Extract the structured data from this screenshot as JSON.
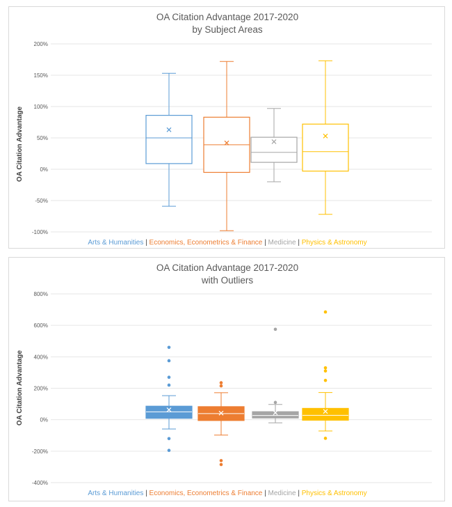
{
  "chart_data": [
    {
      "type": "box",
      "title": "OA Citation Advantage 2017-2020",
      "subtitle": "by Subject Areas",
      "ylabel": "OA Citation Advantage",
      "xlabel": "",
      "ylim": [
        -100,
        200
      ],
      "yticks": [
        "-100%",
        "-50%",
        "0%",
        "50%",
        "100%",
        "150%",
        "200%"
      ],
      "ytick_values": [
        -100,
        -50,
        0,
        50,
        100,
        150,
        200
      ],
      "grid": true,
      "filled": false,
      "legend_position": "bottom",
      "series": [
        {
          "name": "Arts & Humanities",
          "color": "#5b9bd5",
          "min": -59,
          "q1": 9,
          "median": 50,
          "q3": 86,
          "max": 153,
          "mean": 63,
          "outliers": []
        },
        {
          "name": "Economics, Econometrics & Finance",
          "color": "#ed7d31",
          "min": -98,
          "q1": -5,
          "median": 39,
          "q3": 83,
          "max": 172,
          "mean": 42,
          "outliers": []
        },
        {
          "name": "Medicine",
          "color": "#a5a5a5",
          "min": -20,
          "q1": 11,
          "median": 27,
          "q3": 51,
          "max": 97,
          "mean": 44,
          "outliers": []
        },
        {
          "name": "Physics & Astronomy",
          "color": "#ffc000",
          "min": -72,
          "q1": -3,
          "median": 28,
          "q3": 72,
          "max": 173,
          "mean": 53,
          "outliers": []
        }
      ]
    },
    {
      "type": "box",
      "title": "OA Citation Advantage 2017-2020",
      "subtitle": "with Outliers",
      "ylabel": "OA Citation Advantage",
      "xlabel": "",
      "ylim": [
        -400,
        800
      ],
      "yticks": [
        "-400%",
        "-200%",
        "0%",
        "200%",
        "400%",
        "600%",
        "800%"
      ],
      "ytick_values": [
        -400,
        -200,
        0,
        200,
        400,
        600,
        800
      ],
      "grid": true,
      "filled": true,
      "legend_position": "bottom",
      "series": [
        {
          "name": "Arts & Humanities",
          "color": "#5b9bd5",
          "min": -59,
          "q1": 9,
          "median": 50,
          "q3": 86,
          "max": 153,
          "mean": 63,
          "outliers": [
            460,
            375,
            270,
            220,
            -120,
            -195
          ]
        },
        {
          "name": "Economics, Econometrics & Finance",
          "color": "#ed7d31",
          "min": -98,
          "q1": -5,
          "median": 39,
          "q3": 83,
          "max": 172,
          "mean": 42,
          "outliers": [
            235,
            215,
            -260,
            -285
          ]
        },
        {
          "name": "Medicine",
          "color": "#a5a5a5",
          "min": -20,
          "q1": 11,
          "median": 27,
          "q3": 51,
          "max": 97,
          "mean": 44,
          "outliers": [
            575,
            110
          ]
        },
        {
          "name": "Physics & Astronomy",
          "color": "#ffc000",
          "min": -72,
          "q1": -3,
          "median": 28,
          "q3": 72,
          "max": 173,
          "mean": 53,
          "outliers": [
            685,
            330,
            310,
            250,
            -118
          ]
        }
      ]
    }
  ],
  "legend_separator": " | "
}
